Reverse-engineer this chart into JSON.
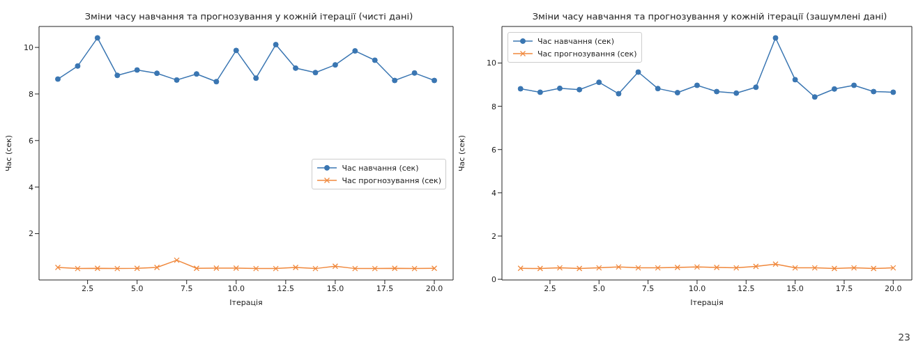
{
  "chart_data": [
    {
      "type": "line",
      "title": "Зміни часу навчання та прогнозування у кожній ітерації (чисті дані)",
      "xlabel": "Ітерація",
      "ylabel": "Час (сек)",
      "x": [
        1,
        2,
        3,
        4,
        5,
        6,
        7,
        8,
        9,
        10,
        11,
        12,
        13,
        14,
        15,
        16,
        17,
        18,
        19,
        20
      ],
      "series": [
        {
          "name": "Час навчання (сек)",
          "color": "#3a76b2",
          "marker": "circle",
          "values": [
            8.64,
            9.2,
            10.41,
            8.8,
            9.03,
            8.89,
            8.6,
            8.86,
            8.53,
            9.87,
            8.68,
            10.12,
            9.11,
            8.92,
            9.25,
            9.85,
            9.45,
            8.58,
            8.9,
            8.58
          ]
        },
        {
          "name": "Час прогнозування (сек)",
          "color": "#f0883c",
          "marker": "cross",
          "values": [
            0.55,
            0.5,
            0.51,
            0.5,
            0.51,
            0.55,
            0.86,
            0.51,
            0.52,
            0.52,
            0.5,
            0.5,
            0.55,
            0.5,
            0.6,
            0.5,
            0.5,
            0.51,
            0.5,
            0.51
          ]
        }
      ],
      "xlim": [
        0.05,
        20.95
      ],
      "xticks": [
        {
          "value": 2.5,
          "label": "2.5"
        },
        {
          "value": 5,
          "label": "5.0"
        },
        {
          "value": 7.5,
          "label": "7.5"
        },
        {
          "value": 10,
          "label": "10.0"
        },
        {
          "value": 12.5,
          "label": "12.5"
        },
        {
          "value": 15,
          "label": "15.0"
        },
        {
          "value": 17.5,
          "label": "17.5"
        },
        {
          "value": 20,
          "label": "20.0"
        }
      ],
      "ylim": [
        0.01,
        10.9
      ],
      "yticks": [
        2,
        4,
        6,
        8,
        10
      ],
      "grid": false,
      "legend": "right",
      "line_style": "solid"
    },
    {
      "type": "line",
      "title": "Зміни часу навчання та прогнозування у кожній ітерації (зашумлені дані)",
      "xlabel": "Ітерація",
      "ylabel": "Час (сек)",
      "x": [
        1,
        2,
        3,
        4,
        5,
        6,
        7,
        8,
        9,
        10,
        11,
        12,
        13,
        14,
        15,
        16,
        17,
        18,
        19,
        20
      ],
      "series": [
        {
          "name": "Час навчання (сек)",
          "color": "#3a76b2",
          "marker": "circle",
          "values": [
            8.81,
            8.65,
            8.83,
            8.77,
            9.11,
            8.58,
            9.58,
            8.82,
            8.63,
            8.97,
            8.68,
            8.61,
            8.88,
            11.16,
            9.23,
            8.43,
            8.8,
            8.97,
            8.68,
            8.65
          ]
        },
        {
          "name": "Час прогнозування (сек)",
          "color": "#f0883c",
          "marker": "cross",
          "values": [
            0.51,
            0.5,
            0.53,
            0.5,
            0.53,
            0.57,
            0.53,
            0.53,
            0.55,
            0.57,
            0.55,
            0.53,
            0.6,
            0.7,
            0.53,
            0.53,
            0.5,
            0.53,
            0.5,
            0.53
          ]
        }
      ],
      "xlim": [
        0.05,
        20.95
      ],
      "xticks": [
        {
          "value": 2.5,
          "label": "2.5"
        },
        {
          "value": 5,
          "label": "5.0"
        },
        {
          "value": 7.5,
          "label": "7.5"
        },
        {
          "value": 10,
          "label": "10.0"
        },
        {
          "value": 12.5,
          "label": "12.5"
        },
        {
          "value": 15,
          "label": "15.0"
        },
        {
          "value": 17.5,
          "label": "17.5"
        },
        {
          "value": 20,
          "label": "20.0"
        }
      ],
      "ylim": [
        -0.03,
        11.69
      ],
      "yticks": [
        0,
        2,
        4,
        6,
        8,
        10
      ],
      "grid": false,
      "legend": "top left",
      "line_style": "solid",
      "annotations": [
        "23"
      ]
    }
  ]
}
